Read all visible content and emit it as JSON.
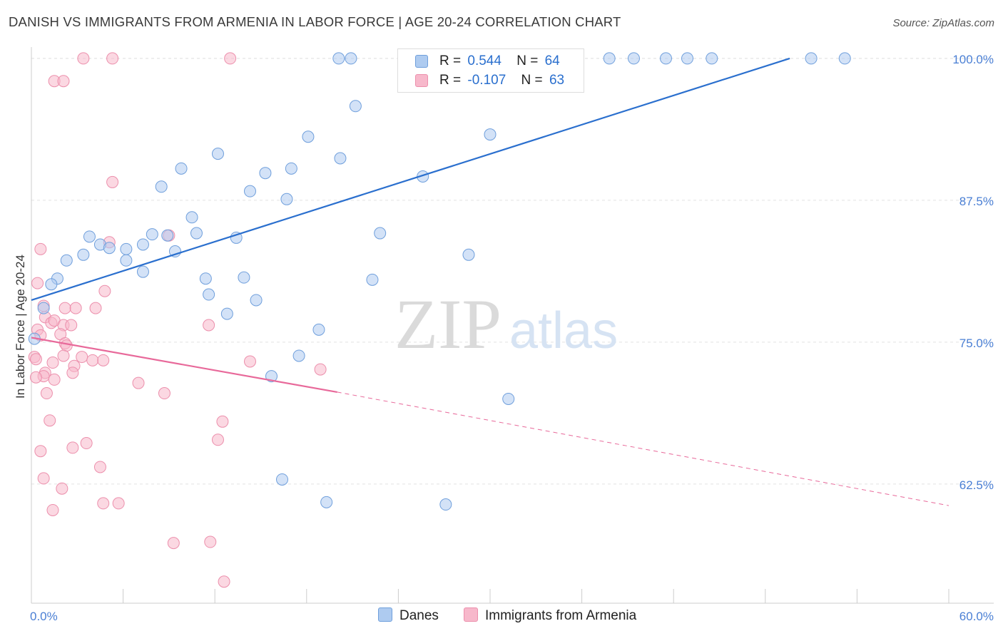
{
  "header": {
    "title": "DANISH VS IMMIGRANTS FROM ARMENIA IN LABOR FORCE | AGE 20-24 CORRELATION CHART",
    "source": "Source: ZipAtlas.com"
  },
  "legend": {
    "row1": {
      "r_label": "R =",
      "r_value": "0.544",
      "n_label": "N =",
      "n_value": "64"
    },
    "row2": {
      "r_label": "R =",
      "r_value": "-0.107",
      "n_label": "N =",
      "n_value": "63"
    }
  },
  "bottom_legend": {
    "danes": "Danes",
    "armenia": "Immigrants from Armenia"
  },
  "colors": {
    "danes_fill": "#aecbf0",
    "danes_stroke": "#6f9fdc",
    "danes_line": "#2a6fce",
    "armenia_fill": "#f7b8cb",
    "armenia_stroke": "#ec8fac",
    "armenia_line": "#e8699a",
    "tick_label": "#4a7fd4"
  },
  "chart_data": {
    "type": "scatter",
    "title": "DANISH VS IMMIGRANTS FROM ARMENIA IN LABOR FORCE | AGE 20-24 CORRELATION CHART",
    "xlabel": "",
    "ylabel": "In Labor Force | Age 20-24",
    "xlim": [
      0,
      60
    ],
    "ylim": [
      52.0,
      101.0
    ],
    "x_tick_labels": [
      "0.0%",
      "60.0%"
    ],
    "y_ticks": [
      100.0,
      87.5,
      75.0,
      62.5
    ],
    "y_tick_labels": [
      "100.0%",
      "87.5%",
      "75.0%",
      "62.5%"
    ],
    "watermark": {
      "zip": "ZIP",
      "atlas": "atlas"
    },
    "series": [
      {
        "name": "Danes",
        "r": 0.544,
        "n": 64,
        "trend": {
          "x": [
            0.0,
            49.6
          ],
          "y": [
            78.7,
            100.0
          ],
          "dashed_to": null
        },
        "points": [
          [
            20.1,
            100.0
          ],
          [
            20.9,
            100.0
          ],
          [
            25.2,
            100.0
          ],
          [
            26.2,
            100.0
          ],
          [
            28.2,
            100.0
          ],
          [
            30.6,
            100.0
          ],
          [
            33.3,
            100.0
          ],
          [
            37.8,
            100.0
          ],
          [
            39.4,
            100.0
          ],
          [
            41.5,
            100.0
          ],
          [
            42.9,
            100.0
          ],
          [
            44.5,
            100.0
          ],
          [
            51.0,
            100.0
          ],
          [
            53.2,
            100.0
          ],
          [
            21.2,
            95.8
          ],
          [
            30.0,
            93.3
          ],
          [
            18.1,
            93.1
          ],
          [
            12.2,
            91.6
          ],
          [
            20.2,
            91.2
          ],
          [
            9.8,
            90.3
          ],
          [
            17.0,
            90.3
          ],
          [
            15.3,
            89.9
          ],
          [
            25.6,
            89.6
          ],
          [
            8.5,
            88.7
          ],
          [
            14.3,
            88.3
          ],
          [
            16.7,
            87.6
          ],
          [
            10.5,
            86.0
          ],
          [
            10.8,
            84.6
          ],
          [
            13.4,
            84.2
          ],
          [
            7.9,
            84.5
          ],
          [
            8.9,
            84.4
          ],
          [
            22.8,
            84.6
          ],
          [
            3.8,
            84.3
          ],
          [
            4.5,
            83.6
          ],
          [
            7.3,
            83.6
          ],
          [
            5.1,
            83.3
          ],
          [
            6.2,
            83.2
          ],
          [
            9.4,
            83.0
          ],
          [
            3.4,
            82.7
          ],
          [
            2.3,
            82.2
          ],
          [
            6.2,
            82.2
          ],
          [
            28.6,
            82.7
          ],
          [
            7.3,
            81.2
          ],
          [
            1.7,
            80.6
          ],
          [
            11.4,
            80.6
          ],
          [
            13.9,
            80.7
          ],
          [
            22.3,
            80.5
          ],
          [
            1.3,
            80.1
          ],
          [
            11.6,
            79.2
          ],
          [
            14.7,
            78.7
          ],
          [
            0.8,
            78.0
          ],
          [
            12.8,
            77.5
          ],
          [
            18.8,
            76.1
          ],
          [
            0.2,
            75.3
          ],
          [
            17.5,
            73.8
          ],
          [
            15.7,
            72.0
          ],
          [
            31.2,
            70.0
          ],
          [
            16.4,
            62.9
          ],
          [
            19.3,
            60.9
          ],
          [
            27.1,
            60.7
          ]
        ]
      },
      {
        "name": "Immigrants from Armenia",
        "r": -0.107,
        "n": 63,
        "trend": {
          "x": [
            0.0,
            20.0
          ],
          "y": [
            75.4,
            70.6
          ],
          "dashed_to": [
            60.0,
            60.6
          ]
        },
        "points": [
          [
            3.4,
            100.0
          ],
          [
            5.3,
            100.0
          ],
          [
            13.0,
            100.0
          ],
          [
            1.5,
            98.0
          ],
          [
            2.1,
            98.0
          ],
          [
            5.3,
            89.1
          ],
          [
            9.0,
            84.4
          ],
          [
            5.1,
            83.8
          ],
          [
            0.6,
            83.2
          ],
          [
            0.4,
            80.2
          ],
          [
            4.8,
            79.5
          ],
          [
            0.8,
            78.2
          ],
          [
            2.2,
            78.0
          ],
          [
            2.9,
            78.0
          ],
          [
            4.2,
            78.0
          ],
          [
            0.9,
            77.2
          ],
          [
            1.3,
            76.7
          ],
          [
            1.5,
            76.9
          ],
          [
            11.6,
            76.5
          ],
          [
            2.1,
            76.5
          ],
          [
            2.6,
            76.5
          ],
          [
            0.4,
            76.1
          ],
          [
            1.9,
            75.7
          ],
          [
            0.6,
            75.6
          ],
          [
            2.2,
            74.9
          ],
          [
            2.3,
            74.7
          ],
          [
            2.1,
            73.8
          ],
          [
            3.3,
            73.7
          ],
          [
            4.0,
            73.4
          ],
          [
            4.7,
            73.4
          ],
          [
            0.2,
            73.7
          ],
          [
            0.3,
            73.5
          ],
          [
            14.3,
            73.3
          ],
          [
            1.4,
            73.2
          ],
          [
            2.8,
            72.9
          ],
          [
            0.9,
            72.3
          ],
          [
            18.9,
            72.6
          ],
          [
            2.7,
            72.3
          ],
          [
            0.8,
            72.0
          ],
          [
            0.3,
            71.9
          ],
          [
            1.5,
            71.7
          ],
          [
            7.0,
            71.4
          ],
          [
            8.7,
            70.5
          ],
          [
            1.0,
            70.5
          ],
          [
            1.2,
            68.1
          ],
          [
            12.5,
            68.0
          ],
          [
            3.6,
            66.1
          ],
          [
            2.7,
            65.7
          ],
          [
            0.6,
            65.4
          ],
          [
            12.2,
            66.4
          ],
          [
            4.5,
            64.0
          ],
          [
            0.8,
            63.0
          ],
          [
            2.0,
            62.1
          ],
          [
            4.7,
            60.8
          ],
          [
            5.7,
            60.8
          ],
          [
            1.4,
            60.2
          ],
          [
            9.3,
            57.3
          ],
          [
            11.7,
            57.4
          ],
          [
            12.6,
            53.9
          ]
        ]
      }
    ]
  }
}
